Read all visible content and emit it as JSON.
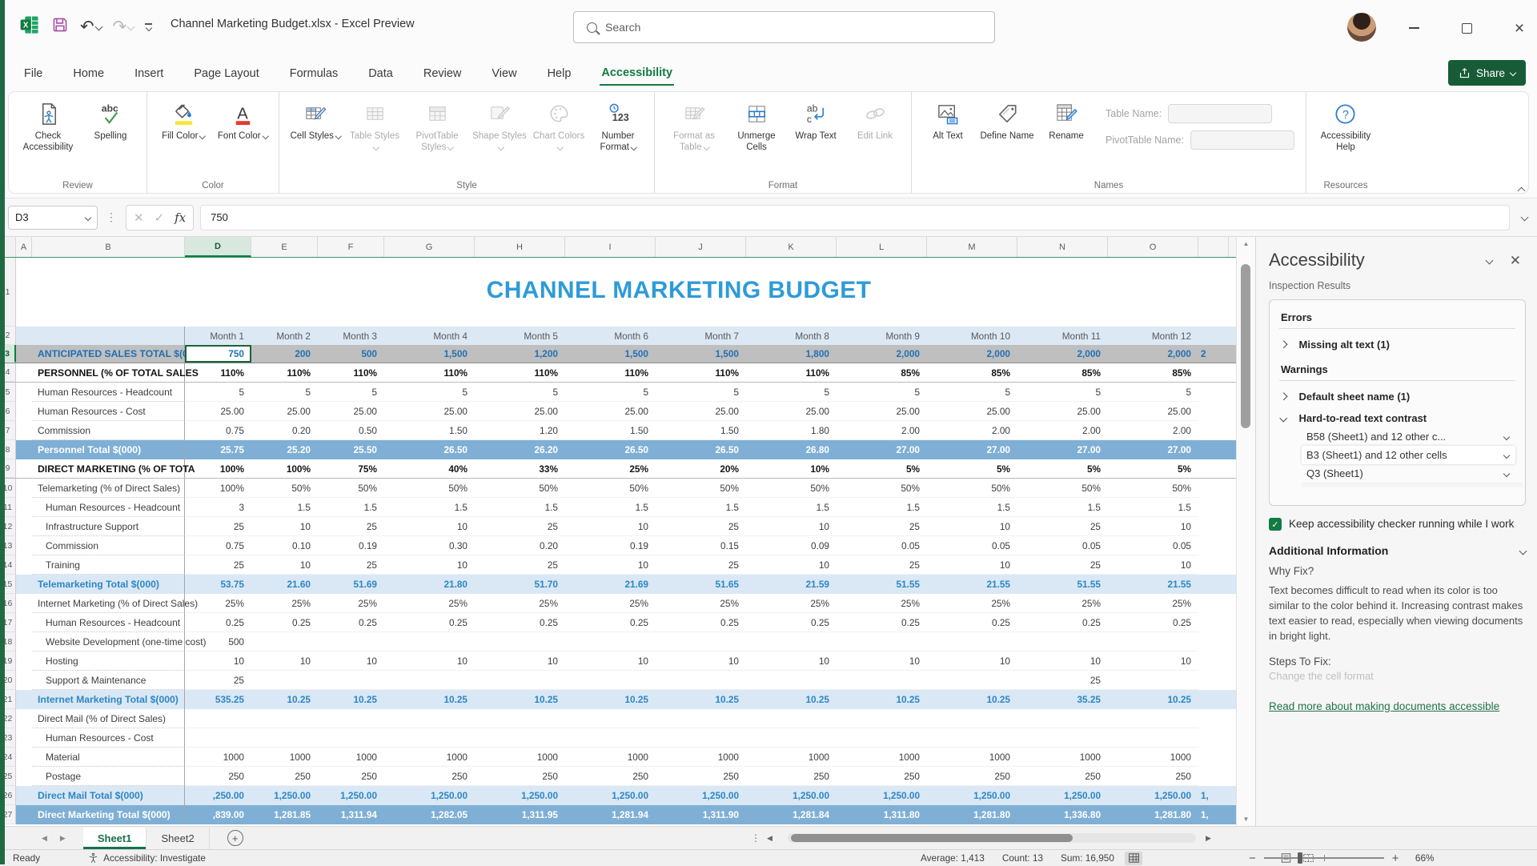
{
  "colors": {
    "accent_green": "#217346",
    "tab_underline": "#127A42",
    "share_green": "#185C37",
    "sheet_title_blue": "#2E9BD8",
    "gray_band": "#BFBFBF",
    "light_blue_total": "#D9E8F4",
    "medium_blue_total": "#7FAFD4",
    "fill_yellow": "#F5E636",
    "font_red": "#E03C31",
    "link_green": "#217346"
  },
  "titlebar": {
    "title": "Channel Marketing Budget.xlsx  -  Excel Preview",
    "search_placeholder": "Search"
  },
  "menu": {
    "tabs": [
      "File",
      "Home",
      "Insert",
      "Page Layout",
      "Formulas",
      "Data",
      "Review",
      "View",
      "Help",
      "Accessibility"
    ],
    "active_tab": "Accessibility",
    "share_label": "Share"
  },
  "ribbon": {
    "groups": [
      {
        "label": "Review",
        "buttons": [
          {
            "label": "Check Accessibility",
            "icon": "check-accessibility",
            "enabled": true
          },
          {
            "label": "Spelling",
            "icon": "spelling",
            "enabled": true
          }
        ]
      },
      {
        "label": "Color",
        "buttons": [
          {
            "label": "Fill Color",
            "icon": "fill-color",
            "enabled": true,
            "dropdown": true
          },
          {
            "label": "Font Color",
            "icon": "font-color",
            "enabled": true,
            "dropdown": true
          }
        ]
      },
      {
        "label": "Style",
        "buttons": [
          {
            "label": "Cell Styles",
            "icon": "cell-styles",
            "enabled": true,
            "dropdown": true
          },
          {
            "label": "Table Styles",
            "icon": "table-styles",
            "enabled": false,
            "dropdown": true
          },
          {
            "label": "PivotTable Styles",
            "icon": "pivottable-styles",
            "enabled": false,
            "dropdown": true
          },
          {
            "label": "Shape Styles",
            "icon": "shape-styles",
            "enabled": false,
            "dropdown": true
          },
          {
            "label": "Chart Colors",
            "icon": "chart-colors",
            "enabled": false,
            "dropdown": true
          },
          {
            "label": "Number Format",
            "icon": "number-format",
            "enabled": true,
            "dropdown": true
          }
        ]
      },
      {
        "label": "Format",
        "buttons": [
          {
            "label": "Format as Table",
            "icon": "format-as-table",
            "enabled": false,
            "dropdown": true
          },
          {
            "label": "Unmerge Cells",
            "icon": "unmerge-cells",
            "enabled": true
          },
          {
            "label": "Wrap Text",
            "icon": "wrap-text",
            "enabled": true
          },
          {
            "label": "Edit Link",
            "icon": "edit-link",
            "enabled": false
          }
        ]
      },
      {
        "label": "Names",
        "buttons": [
          {
            "label": "Alt Text",
            "icon": "alt-text",
            "enabled": true
          },
          {
            "label": "Define Name",
            "icon": "define-name",
            "enabled": true
          },
          {
            "label": "Rename",
            "icon": "rename",
            "enabled": true
          }
        ],
        "fields": [
          {
            "label": "Table Name:"
          },
          {
            "label": "PivotTable Name:"
          }
        ]
      },
      {
        "label": "Resources",
        "buttons": [
          {
            "label": "Accessibility Help",
            "icon": "accessibility-help",
            "enabled": true
          }
        ]
      }
    ]
  },
  "formula_bar": {
    "name_box": "D3",
    "formula": "750"
  },
  "sheet": {
    "col_letters": [
      "A",
      "B",
      "D",
      "E",
      "F",
      "G",
      "H",
      "I",
      "J",
      "K",
      "L",
      "M",
      "N",
      "O"
    ],
    "title": "CHANNEL MARKETING BUDGET",
    "selected_cell": "D3",
    "value_cols": [
      "D",
      "E",
      "F",
      "G",
      "H",
      "I",
      "J",
      "K",
      "L",
      "M",
      "N",
      "O"
    ],
    "rows": [
      {
        "num": 2,
        "style": "months",
        "label": "",
        "values": [
          "Month 1",
          "Month 2",
          "Month 3",
          "Month 4",
          "Month 5",
          "Month 6",
          "Month 7",
          "Month 8",
          "Month 9",
          "Month 10",
          "Month 11",
          "Month 12"
        ],
        "sliver": ""
      },
      {
        "num": 3,
        "style": "gray",
        "label": "ANTICIPATED SALES TOTAL $(00",
        "values": [
          "750",
          "200",
          "500",
          "1,500",
          "1,200",
          "1,500",
          "1,500",
          "1,800",
          "2,000",
          "2,000",
          "2,000",
          "2,000"
        ],
        "sliver": "2",
        "selected": 0
      },
      {
        "num": 4,
        "style": "section",
        "label": "PERSONNEL (% OF TOTAL SALES",
        "values": [
          "110%",
          "110%",
          "110%",
          "110%",
          "110%",
          "110%",
          "110%",
          "110%",
          "85%",
          "85%",
          "85%",
          "85%"
        ],
        "sliver": ""
      },
      {
        "num": 5,
        "style": "item",
        "label": "Human Resources - Headcount",
        "values": [
          "5",
          "5",
          "5",
          "5",
          "5",
          "5",
          "5",
          "5",
          "5",
          "5",
          "5",
          "5"
        ],
        "sliver": ""
      },
      {
        "num": 6,
        "style": "item",
        "label": "Human Resources - Cost",
        "values": [
          "25.00",
          "25.00",
          "25.00",
          "25.00",
          "25.00",
          "25.00",
          "25.00",
          "25.00",
          "25.00",
          "25.00",
          "25.00",
          "25.00"
        ],
        "sliver": ""
      },
      {
        "num": 7,
        "style": "item",
        "label": "Commission",
        "values": [
          "0.75",
          "0.20",
          "0.50",
          "1.50",
          "1.20",
          "1.50",
          "1.50",
          "1.80",
          "2.00",
          "2.00",
          "2.00",
          "2.00"
        ],
        "sliver": ""
      },
      {
        "num": 8,
        "style": "total-dark",
        "label": "Personnel Total $(000)",
        "values": [
          "25.75",
          "25.20",
          "25.50",
          "26.50",
          "26.20",
          "26.50",
          "26.50",
          "26.80",
          "27.00",
          "27.00",
          "27.00",
          "27.00"
        ],
        "sliver": ""
      },
      {
        "num": 9,
        "style": "section",
        "label": "DIRECT MARKETING (% OF TOTA",
        "values": [
          "100%",
          "100%",
          "75%",
          "40%",
          "33%",
          "25%",
          "20%",
          "10%",
          "5%",
          "5%",
          "5%",
          "5%"
        ],
        "sliver": ""
      },
      {
        "num": 10,
        "style": "item",
        "label": "Telemarketing (% of Direct Sales)",
        "values": [
          "100%",
          "50%",
          "50%",
          "50%",
          "50%",
          "50%",
          "50%",
          "50%",
          "50%",
          "50%",
          "50%",
          "50%"
        ],
        "sliver": ""
      },
      {
        "num": 11,
        "style": "item2",
        "label": "Human Resources - Headcount",
        "values": [
          "3",
          "1.5",
          "1.5",
          "1.5",
          "1.5",
          "1.5",
          "1.5",
          "1.5",
          "1.5",
          "1.5",
          "1.5",
          "1.5"
        ],
        "sliver": ""
      },
      {
        "num": 12,
        "style": "item2",
        "label": "Infrastructure Support",
        "values": [
          "25",
          "10",
          "25",
          "10",
          "25",
          "10",
          "25",
          "10",
          "25",
          "10",
          "25",
          "10"
        ],
        "sliver": ""
      },
      {
        "num": 13,
        "style": "item2",
        "label": "Commission",
        "values": [
          "0.75",
          "0.10",
          "0.19",
          "0.30",
          "0.20",
          "0.19",
          "0.15",
          "0.09",
          "0.05",
          "0.05",
          "0.05",
          "0.05"
        ],
        "sliver": ""
      },
      {
        "num": 14,
        "style": "item2",
        "label": "Training",
        "values": [
          "25",
          "10",
          "25",
          "10",
          "25",
          "10",
          "25",
          "10",
          "25",
          "10",
          "25",
          "10"
        ],
        "sliver": ""
      },
      {
        "num": 15,
        "style": "total-light",
        "label": "Telemarketing Total $(000)",
        "values": [
          "53.75",
          "21.60",
          "51.69",
          "21.80",
          "51.70",
          "21.69",
          "51.65",
          "21.59",
          "51.55",
          "21.55",
          "51.55",
          "21.55"
        ],
        "sliver": ""
      },
      {
        "num": 16,
        "style": "item",
        "label": "Internet Marketing (% of Direct Sales)",
        "values": [
          "25%",
          "25%",
          "25%",
          "25%",
          "25%",
          "25%",
          "25%",
          "25%",
          "25%",
          "25%",
          "25%",
          "25%"
        ],
        "sliver": ""
      },
      {
        "num": 17,
        "style": "item2",
        "label": "Human Resources - Headcount",
        "values": [
          "0.25",
          "0.25",
          "0.25",
          "0.25",
          "0.25",
          "0.25",
          "0.25",
          "0.25",
          "0.25",
          "0.25",
          "0.25",
          "0.25"
        ],
        "sliver": ""
      },
      {
        "num": 18,
        "style": "item2",
        "label": "Website Development (one-time cost)",
        "values": [
          "500",
          "",
          "",
          "",
          "",
          "",
          "",
          "",
          "",
          "",
          "",
          ""
        ],
        "sliver": ""
      },
      {
        "num": 19,
        "style": "item2",
        "label": "Hosting",
        "values": [
          "10",
          "10",
          "10",
          "10",
          "10",
          "10",
          "10",
          "10",
          "10",
          "10",
          "10",
          "10"
        ],
        "sliver": ""
      },
      {
        "num": 20,
        "style": "item2",
        "label": "Support & Maintenance",
        "values": [
          "25",
          "",
          "",
          "",
          "",
          "",
          "",
          "",
          "",
          "",
          "25",
          ""
        ],
        "sliver": ""
      },
      {
        "num": 21,
        "style": "total-light",
        "label": "Internet Marketing Total $(000)",
        "values": [
          "535.25",
          "10.25",
          "10.25",
          "10.25",
          "10.25",
          "10.25",
          "10.25",
          "10.25",
          "10.25",
          "10.25",
          "35.25",
          "10.25"
        ],
        "sliver": ""
      },
      {
        "num": 22,
        "style": "item",
        "label": "Direct Mail (% of Direct Sales)",
        "values": [
          "",
          "",
          "",
          "",
          "",
          "",
          "",
          "",
          "",
          "",
          "",
          ""
        ],
        "sliver": ""
      },
      {
        "num": 23,
        "style": "item2",
        "label": "Human Resources - Cost",
        "values": [
          "",
          "",
          "",
          "",
          "",
          "",
          "",
          "",
          "",
          "",
          "",
          ""
        ],
        "sliver": ""
      },
      {
        "num": 24,
        "style": "item2",
        "label": "Material",
        "values": [
          "1000",
          "1000",
          "1000",
          "1000",
          "1000",
          "1000",
          "1000",
          "1000",
          "1000",
          "1000",
          "1000",
          "1000"
        ],
        "sliver": ""
      },
      {
        "num": 25,
        "style": "item2",
        "label": "Postage",
        "values": [
          "250",
          "250",
          "250",
          "250",
          "250",
          "250",
          "250",
          "250",
          "250",
          "250",
          "250",
          "250"
        ],
        "sliver": ""
      },
      {
        "num": 26,
        "style": "total-light",
        "label": "Direct Mail Total $(000)",
        "values": [
          ",250.00",
          "1,250.00",
          "1,250.00",
          "1,250.00",
          "1,250.00",
          "1,250.00",
          "1,250.00",
          "1,250.00",
          "1,250.00",
          "1,250.00",
          "1,250.00",
          "1,250.00"
        ],
        "sliver": "1,"
      },
      {
        "num": 27,
        "style": "total-dark",
        "label": "Direct Marketing Total $(000)",
        "values": [
          ",839.00",
          "1,281.85",
          "1,311.94",
          "1,282.05",
          "1,311.95",
          "1,281.94",
          "1,311.90",
          "1,281.84",
          "1,311.80",
          "1,281.80",
          "1,336.80",
          "1,281.80"
        ],
        "sliver": "1,"
      }
    ]
  },
  "sheet_tabs": {
    "tabs": [
      "Sheet1",
      "Sheet2"
    ],
    "active": "Sheet1"
  },
  "panel": {
    "title": "Accessibility",
    "subtitle": "Inspection Results",
    "errors_heading": "Errors",
    "error_items": [
      {
        "label": "Missing alt text (1)"
      }
    ],
    "warnings_heading": "Warnings",
    "warning_items": [
      {
        "label": "Default sheet name (1)",
        "expanded": false,
        "children": []
      },
      {
        "label": "Hard-to-read text contrast",
        "expanded": true,
        "children": [
          "B58 (Sheet1) and 12 other c...",
          "B3 (Sheet1) and 12 other cells",
          "Q3 (Sheet1)"
        ],
        "selected_child": 1
      }
    ],
    "checkbox_label": "Keep accessibility checker running while I work",
    "checkbox_checked": true,
    "additional_info_heading": "Additional Information",
    "why_fix_heading": "Why Fix?",
    "why_fix_text": "Text becomes difficult to read when its color is too similar to the color behind it. Increasing contrast makes text easier to read, especially when viewing documents in bright light.",
    "steps_heading": "Steps To Fix:",
    "steps_partial": "Change the cell format",
    "link_label": "Read more about making documents accessible"
  },
  "status_bar": {
    "ready": "Ready",
    "accessibility": "Accessibility: Investigate",
    "average": "Average: 1,413",
    "count": "Count: 13",
    "sum": "Sum: 16,950",
    "zoom": "66%"
  }
}
